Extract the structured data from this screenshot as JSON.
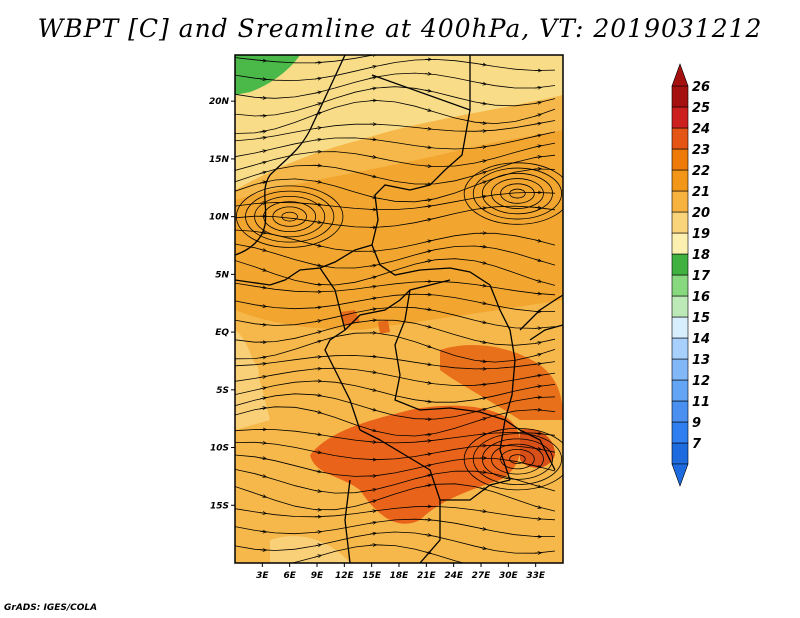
{
  "title": "WBPT [C] and Sreamline at 400hPa, VT: 2019031212",
  "credit": "GrADS: IGES/COLA",
  "map": {
    "lon_range": [
      0,
      36
    ],
    "lat_range": [
      -20,
      24
    ],
    "lat_ticks": [
      {
        "value": 20,
        "label": "20N"
      },
      {
        "value": 15,
        "label": "15N"
      },
      {
        "value": 10,
        "label": "10N"
      },
      {
        "value": 5,
        "label": "5N"
      },
      {
        "value": 0,
        "label": "EQ"
      },
      {
        "value": -5,
        "label": "5S"
      },
      {
        "value": -10,
        "label": "10S"
      },
      {
        "value": -15,
        "label": "15S"
      }
    ],
    "lon_ticks": [
      {
        "value": 3,
        "label": "3E"
      },
      {
        "value": 6,
        "label": "6E"
      },
      {
        "value": 9,
        "label": "9E"
      },
      {
        "value": 12,
        "label": "12E"
      },
      {
        "value": 15,
        "label": "15E"
      },
      {
        "value": 18,
        "label": "18E"
      },
      {
        "value": 21,
        "label": "21E"
      },
      {
        "value": 24,
        "label": "24E"
      },
      {
        "value": 27,
        "label": "27E"
      },
      {
        "value": 30,
        "label": "30E"
      },
      {
        "value": 33,
        "label": "33E"
      }
    ],
    "features": [
      {
        "name": "cyclonic-vortex",
        "lon": 31,
        "lat": 12
      },
      {
        "name": "west-vortex",
        "lon": 6,
        "lat": 10
      },
      {
        "name": "southeast-vortex",
        "lon": 31,
        "lat": -11
      }
    ]
  },
  "colorbar": {
    "labels": [
      "7",
      "9",
      "11",
      "12",
      "13",
      "14",
      "15",
      "16",
      "17",
      "18",
      "19",
      "20",
      "21",
      "22",
      "23",
      "24",
      "25",
      "26"
    ],
    "colors": [
      "#1e6be0",
      "#2f7ff0",
      "#4a90f0",
      "#64a4f5",
      "#82b8f8",
      "#a8d0fc",
      "#d7eefc",
      "#bde8b8",
      "#88d880",
      "#40b040",
      "#fbf0b0",
      "#fad47a",
      "#f7b240",
      "#f29618",
      "#ee7a0a",
      "#e45414",
      "#cc2020",
      "#a51010"
    ]
  }
}
